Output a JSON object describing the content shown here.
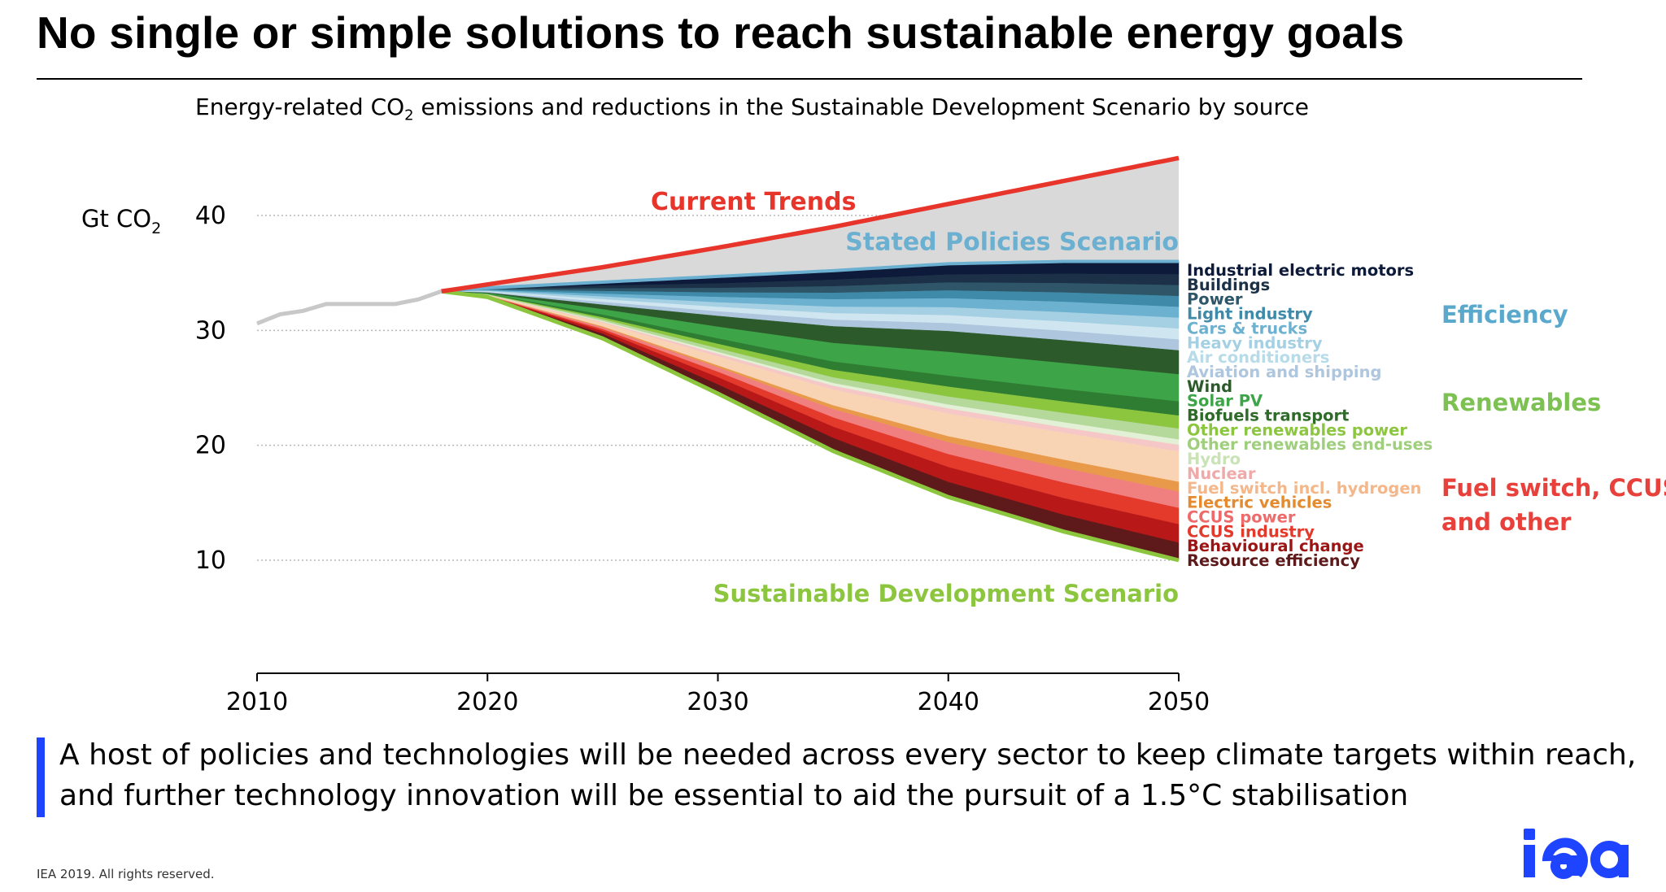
{
  "header": {
    "title": "No single or simple solutions to reach sustainable energy goals",
    "subtitle_main": "Energy-related CO",
    "subtitle_sub": "2",
    "subtitle_rest": " emissions and reductions in the Sustainable Development Scenario by source"
  },
  "takeaway": {
    "line1": "A host of policies and technologies will be needed across every sector to keep climate targets within reach,",
    "line2": "and further technology innovation will be essential to aid the pursuit of a 1.5°C stabilisation"
  },
  "footer": {
    "copyright": "IEA 2019. All rights reserved."
  },
  "logo": {
    "text": "iea",
    "color": "#1f44ff"
  },
  "chart_data": {
    "type": "area",
    "ylabel": "Gt CO",
    "ylabel_sub": "2",
    "xlim": [
      2010,
      2050
    ],
    "ylim": [
      0,
      45
    ],
    "x_ticks": [
      2010,
      2020,
      2030,
      2040,
      2050
    ],
    "y_ticks": [
      10,
      20,
      30,
      40
    ],
    "grid": "horizontal dotted",
    "historical": {
      "color": "#c8c8c8",
      "x": [
        2010,
        2011,
        2012,
        2013,
        2014,
        2015,
        2016,
        2017,
        2018
      ],
      "y": [
        30.6,
        31.4,
        31.7,
        32.3,
        32.3,
        32.3,
        32.3,
        32.7,
        33.4
      ]
    },
    "current_trends": {
      "name": "Current Trends",
      "color": "#e8352b",
      "x": [
        2018,
        2020,
        2025,
        2030,
        2035,
        2040,
        2045,
        2050
      ],
      "y": [
        33.4,
        34.0,
        35.5,
        37.2,
        39.0,
        41.0,
        43.0,
        45.0
      ]
    },
    "stated_policies": {
      "name": "Stated Policies Scenario",
      "color": "#6bb0d1",
      "x": [
        2018,
        2020,
        2025,
        2030,
        2035,
        2040,
        2045,
        2050
      ],
      "y": [
        33.4,
        33.7,
        34.2,
        34.7,
        35.2,
        35.8,
        36.0,
        36.0
      ]
    },
    "sds": {
      "name": "Sustainable Development Scenario",
      "color": "#8cc63f",
      "x": [
        2018,
        2020,
        2025,
        2030,
        2035,
        2040,
        2045,
        2050
      ],
      "y": [
        33.4,
        32.9,
        29.3,
        24.5,
        19.5,
        15.5,
        12.5,
        10.0
      ]
    },
    "wedge_x": [
      2018,
      2020,
      2025,
      2030,
      2035,
      2040,
      2045,
      2050
    ],
    "wedges": [
      {
        "name": "Industrial electric motors",
        "color": "#0d1a3a",
        "label_color": "#0d1a3a",
        "values": [
          0,
          0.1,
          0.4,
          0.8,
          1.0,
          1.1,
          1.2,
          1.2
        ]
      },
      {
        "name": "Buildings",
        "color": "#1c3148",
        "label_color": "#1c3148",
        "values": [
          0,
          0.1,
          0.3,
          0.5,
          0.7,
          0.8,
          0.9,
          1.0
        ]
      },
      {
        "name": "Power",
        "color": "#2e5668",
        "label_color": "#2e5668",
        "values": [
          0,
          0.1,
          0.3,
          0.5,
          0.7,
          0.8,
          0.9,
          1.0
        ]
      },
      {
        "name": "Light industry",
        "color": "#3e8aa8",
        "label_color": "#3e8aa8",
        "values": [
          0,
          0.1,
          0.3,
          0.5,
          0.7,
          0.8,
          0.9,
          1.0
        ]
      },
      {
        "name": "Cars & trucks",
        "color": "#6cb2d0",
        "label_color": "#6cb2d0",
        "values": [
          0,
          0.1,
          0.3,
          0.6,
          0.8,
          0.9,
          1.0,
          1.0
        ]
      },
      {
        "name": "Heavy industry",
        "color": "#a5d0e3",
        "label_color": "#a5d0e3",
        "values": [
          0,
          0.1,
          0.3,
          0.5,
          0.7,
          0.8,
          0.9,
          1.0
        ]
      },
      {
        "name": "Air conditioners",
        "color": "#cfe6f1",
        "label_color": "#b8dbe9",
        "values": [
          0,
          0.1,
          0.3,
          0.5,
          0.7,
          0.8,
          0.9,
          1.0
        ]
      },
      {
        "name": "Aviation and shipping",
        "color": "#aec6de",
        "label_color": "#aec6de",
        "values": [
          0,
          0.1,
          0.3,
          0.5,
          0.7,
          0.8,
          0.9,
          1.0
        ]
      },
      {
        "name": "Wind",
        "color": "#2d5a2b",
        "label_color": "#2d5a2b",
        "values": [
          0,
          0.1,
          0.5,
          1.2,
          1.8,
          2.1,
          2.2,
          2.2
        ]
      },
      {
        "name": "Solar PV",
        "color": "#3da448",
        "label_color": "#3da448",
        "values": [
          0,
          0.1,
          0.6,
          1.3,
          2.0,
          2.4,
          2.5,
          2.5
        ]
      },
      {
        "name": "Biofuels transport",
        "color": "#2e7d32",
        "label_color": "#2e6b28",
        "values": [
          0,
          0.05,
          0.3,
          0.6,
          0.9,
          1.1,
          1.2,
          1.3
        ]
      },
      {
        "name": "Other renewables power",
        "color": "#8cc63f",
        "label_color": "#8cc63f",
        "values": [
          0,
          0.05,
          0.2,
          0.5,
          0.8,
          1.0,
          1.1,
          1.2
        ]
      },
      {
        "name": "Other renewables end-uses",
        "color": "#b5d99a",
        "label_color": "#9fce7d",
        "values": [
          0,
          0.05,
          0.2,
          0.4,
          0.6,
          0.8,
          0.9,
          1.0
        ]
      },
      {
        "name": "Hydro",
        "color": "#e2f0d6",
        "label_color": "#c9e3b5",
        "values": [
          0,
          0.02,
          0.1,
          0.2,
          0.3,
          0.4,
          0.5,
          0.5
        ]
      },
      {
        "name": "Nuclear",
        "color": "#f6c7c7",
        "label_color": "#f0a9a9",
        "values": [
          0,
          0.02,
          0.1,
          0.3,
          0.4,
          0.5,
          0.5,
          0.6
        ]
      },
      {
        "name": "Fuel switch incl. hydrogen",
        "color": "#f8d4b4",
        "label_color": "#f4b78a",
        "values": [
          0,
          0.1,
          0.4,
          1.0,
          1.7,
          2.3,
          2.6,
          2.8
        ]
      },
      {
        "name": "Electric vehicles",
        "color": "#e89a4a",
        "label_color": "#e58a2e",
        "values": [
          0,
          0.02,
          0.1,
          0.2,
          0.4,
          0.6,
          0.8,
          0.9
        ]
      },
      {
        "name": "CCUS power",
        "color": "#f08080",
        "label_color": "#ee6b6b",
        "values": [
          0,
          0.02,
          0.2,
          0.5,
          0.9,
          1.2,
          1.4,
          1.5
        ]
      },
      {
        "name": "CCUS industry",
        "color": "#e33a2c",
        "label_color": "#e33a2c",
        "values": [
          0,
          0.02,
          0.2,
          0.6,
          1.0,
          1.3,
          1.5,
          1.5
        ]
      },
      {
        "name": "Behavioural change",
        "color": "#b81818",
        "label_color": "#9c1414",
        "values": [
          0,
          0.05,
          0.3,
          0.8,
          1.2,
          1.5,
          1.6,
          1.7
        ]
      },
      {
        "name": "Resource efficiency",
        "color": "#5e1a1a",
        "label_color": "#5e1a1a",
        "values": [
          0,
          0.1,
          0.5,
          1.0,
          1.4,
          1.5,
          1.6,
          1.6
        ]
      }
    ],
    "groups": [
      {
        "name": "Efficiency",
        "color": "#5aa8cc"
      },
      {
        "name": "Renewables",
        "color": "#7cc152"
      },
      {
        "name": "Fuel switch, CCUS",
        "name2": "and other",
        "color": "#e8403a"
      }
    ]
  }
}
